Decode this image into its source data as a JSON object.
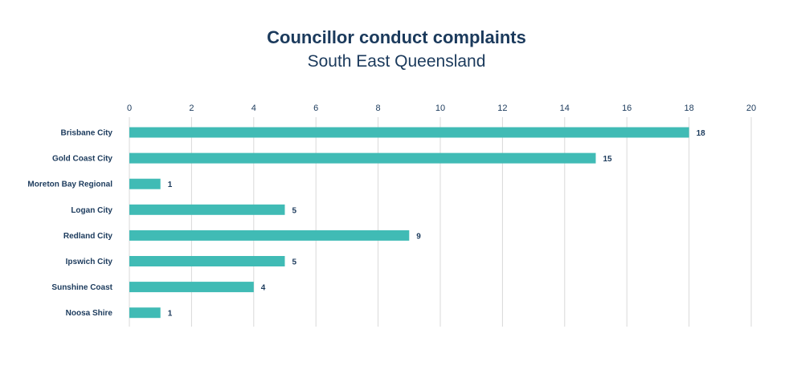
{
  "chart_data": {
    "type": "bar",
    "orientation": "horizontal",
    "title": "Councillor conduct complaints",
    "subtitle": "South East Queensland",
    "categories": [
      "Brisbane City",
      "Gold Coast City",
      "Moreton Bay Regional",
      "Logan City",
      "Redland City",
      "Ipswich City",
      "Sunshine Coast",
      "Noosa Shire"
    ],
    "values": [
      18,
      15,
      1,
      5,
      9,
      5,
      4,
      1
    ],
    "xlim": [
      0,
      20
    ],
    "xticks": [
      "0",
      "2",
      "4",
      "6",
      "8",
      "10",
      "12",
      "14",
      "16",
      "18",
      "20"
    ],
    "xaxis_position": "top",
    "grid": true,
    "data_labels": true,
    "bar_color": "#40bbb5",
    "text_color": "#1b3a5c"
  }
}
